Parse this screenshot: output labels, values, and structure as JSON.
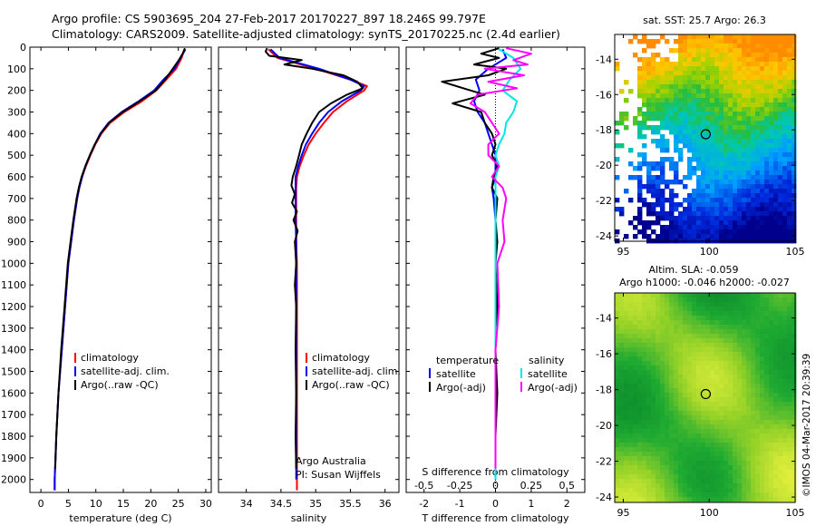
{
  "header": {
    "line1": "Argo profile: CS 5903695_204 27-Feb-2017 20170227_897 18.246S 99.797E",
    "line2": "Climatology: CARS2009. Satellite-adjusted climatology: synTS_20170225.nc (2.4d earlier)"
  },
  "depth_ticks": [
    "0",
    "100",
    "200",
    "300",
    "400",
    "500",
    "600",
    "700",
    "800",
    "900",
    "1000",
    "1100",
    "1200",
    "1300",
    "1400",
    "1500",
    "1600",
    "1700",
    "1800",
    "1900",
    "2000"
  ],
  "colors": {
    "climatology": "#ff0000",
    "satellite": "#0000ff",
    "argo": "#000000",
    "satellite_s": "#00e5e5",
    "argo_s": "#ff00ff"
  },
  "chart_data": [
    {
      "type": "line",
      "xlabel": "temperature (deg C)",
      "xlim": [
        -2,
        31
      ],
      "ylim": [
        0,
        2060
      ],
      "yreversed": true,
      "x_ticks": [
        "0",
        "5",
        "10",
        "15",
        "20",
        "25",
        "30"
      ],
      "legend": [
        "climatology",
        "satellite-adj. clim.",
        "Argo(..raw -QC)"
      ],
      "series": [
        {
          "name": "climatology",
          "color": "#ff0000",
          "depth": [
            10,
            50,
            100,
            150,
            200,
            250,
            300,
            350,
            400,
            450,
            500,
            550,
            600,
            650,
            700,
            800,
            900,
            1000,
            1200,
            1400,
            1600,
            1800,
            2000,
            2050
          ],
          "values": [
            26.1,
            25.6,
            24.6,
            22.8,
            21.0,
            18.4,
            15.2,
            12.6,
            11.0,
            9.9,
            9.0,
            8.2,
            7.5,
            7.0,
            6.6,
            6.0,
            5.5,
            5.0,
            4.4,
            3.8,
            3.2,
            2.8,
            2.5,
            2.5
          ]
        },
        {
          "name": "satellite-adj. clim.",
          "color": "#0000ff",
          "depth": [
            10,
            50,
            100,
            150,
            200,
            250,
            300,
            350,
            400,
            450,
            500,
            550,
            600,
            650,
            700,
            800,
            900,
            1000,
            1200,
            1400,
            1600,
            1800,
            2000,
            2050
          ],
          "values": [
            26.3,
            25.4,
            24.3,
            22.3,
            20.6,
            17.8,
            14.7,
            12.3,
            10.8,
            9.8,
            8.9,
            8.1,
            7.5,
            7.0,
            6.6,
            6.0,
            5.5,
            5.0,
            4.4,
            3.8,
            3.2,
            2.8,
            2.5,
            2.5
          ]
        },
        {
          "name": "Argo(..raw -QC)",
          "color": "#000000",
          "depth": [
            5,
            30,
            60,
            100,
            150,
            200,
            250,
            300,
            350,
            400,
            450,
            500,
            550,
            600,
            650,
            700,
            800,
            900,
            1000,
            1200,
            1400,
            1600,
            1800,
            1950
          ],
          "values": [
            26.2,
            25.8,
            25.1,
            24.0,
            22.6,
            20.9,
            18.0,
            14.9,
            12.4,
            10.9,
            9.8,
            8.9,
            8.1,
            7.4,
            6.9,
            6.5,
            5.9,
            5.4,
            4.9,
            4.3,
            3.7,
            3.2,
            2.8,
            2.6
          ]
        }
      ]
    },
    {
      "type": "line",
      "xlabel": "salinity",
      "xlim": [
        33.6,
        36.2
      ],
      "ylim": [
        0,
        2060
      ],
      "yreversed": true,
      "x_ticks": [
        "34",
        "34.5",
        "35",
        "35.5",
        "36"
      ],
      "legend": [
        "climatology",
        "satellite-adj. clim.",
        "Argo(..raw -QC)"
      ],
      "credit": [
        "Argo Australia",
        "PI: Susan Wijffels"
      ],
      "series": [
        {
          "name": "climatology",
          "color": "#ff0000",
          "depth": [
            10,
            50,
            100,
            150,
            180,
            200,
            250,
            300,
            350,
            400,
            450,
            500,
            550,
            600,
            650,
            700,
            800,
            900,
            1000,
            1200,
            1400,
            1600,
            1800,
            2000,
            2050
          ],
          "values": [
            34.32,
            34.45,
            35.0,
            35.5,
            35.74,
            35.7,
            35.45,
            35.25,
            35.12,
            35.0,
            34.9,
            34.83,
            34.77,
            34.73,
            34.72,
            34.72,
            34.72,
            34.72,
            34.73,
            34.73,
            34.73,
            34.73,
            34.73,
            34.73,
            34.73
          ]
        },
        {
          "name": "satellite-adj. clim.",
          "color": "#0000ff",
          "depth": [
            10,
            50,
            100,
            150,
            180,
            200,
            250,
            300,
            350,
            400,
            450,
            500,
            550,
            600,
            650,
            700,
            800,
            900,
            1000,
            1200,
            1400,
            1600,
            1800,
            2000
          ],
          "values": [
            34.35,
            34.48,
            35.05,
            35.5,
            35.7,
            35.65,
            35.38,
            35.18,
            35.05,
            34.95,
            34.86,
            34.8,
            34.75,
            34.71,
            34.71,
            34.71,
            34.71,
            34.72,
            34.72,
            34.72,
            34.72,
            34.72,
            34.72,
            34.72
          ]
        },
        {
          "name": "Argo(..raw -QC)",
          "color": "#000000",
          "depth": [
            5,
            20,
            40,
            60,
            80,
            100,
            130,
            160,
            190,
            220,
            260,
            300,
            350,
            400,
            450,
            500,
            550,
            600,
            640,
            680,
            720,
            760,
            800,
            850,
            900,
            1000,
            1100,
            1200,
            1400,
            1600,
            1800,
            1950
          ],
          "values": [
            34.3,
            34.28,
            34.33,
            34.8,
            34.55,
            34.95,
            35.4,
            35.6,
            35.68,
            35.45,
            35.22,
            35.05,
            34.95,
            34.87,
            34.8,
            34.76,
            34.72,
            34.67,
            34.65,
            34.7,
            34.66,
            34.73,
            34.68,
            34.74,
            34.7,
            34.72,
            34.7,
            34.72,
            34.71,
            34.72,
            34.71,
            34.72
          ]
        }
      ]
    },
    {
      "type": "line",
      "xlabel": "T difference from climatology",
      "xlabel_top": "S difference from climatology",
      "xlim": [
        -2.5,
        2.5
      ],
      "ylim": [
        0,
        2060
      ],
      "yreversed": true,
      "x_ticks": [
        "-2",
        "-1",
        "0",
        "1",
        "2"
      ],
      "x_ticks_top": [
        "-0.5",
        "-0.25",
        "0",
        "0.25",
        "0.5"
      ],
      "legend_t": {
        "heading": "temperature",
        "items": [
          "satellite",
          "Argo(-adj)"
        ]
      },
      "legend_s": {
        "heading": "salinity",
        "items": [
          "satellite",
          "Argo(-adj)"
        ]
      },
      "series": [
        {
          "name": "temperature satellite",
          "color": "#0000ff",
          "depth": [
            10,
            50,
            100,
            150,
            200,
            250,
            300,
            350,
            400,
            450,
            500,
            550,
            600,
            650,
            700,
            800,
            900,
            1000,
            1200,
            1400,
            1600,
            1800,
            2000
          ],
          "values": [
            0.2,
            0.3,
            -0.2,
            -0.55,
            -0.45,
            -0.6,
            -0.5,
            -0.3,
            -0.2,
            -0.1,
            0,
            0,
            0,
            -0.1,
            -0.05,
            0,
            0,
            0,
            0,
            0,
            0,
            0,
            0
          ]
        },
        {
          "name": "temperature Argo(-adj)",
          "color": "#000000",
          "depth": [
            5,
            30,
            50,
            80,
            100,
            130,
            160,
            190,
            220,
            260,
            300,
            350,
            400,
            450,
            500,
            550,
            600,
            650,
            700,
            800,
            900,
            1000,
            1200,
            1400,
            1600,
            1800,
            1950
          ],
          "values": [
            0.1,
            -0.4,
            0.1,
            -0.6,
            0.3,
            -0.2,
            -1.5,
            -0.9,
            -0.3,
            -1.2,
            -0.4,
            -0.3,
            -0.1,
            0,
            -0.1,
            0.05,
            -0.05,
            -0.1,
            0.05,
            0,
            0.05,
            0,
            0.05,
            0,
            0.05,
            0,
            0
          ]
        },
        {
          "name": "salinity satellite",
          "color": "#00e5e5",
          "depth": [
            10,
            50,
            100,
            150,
            200,
            250,
            300,
            350,
            400,
            450,
            500,
            550,
            600,
            650,
            700,
            800,
            900,
            1000,
            1200,
            1400,
            1600,
            1800,
            2000
          ],
          "values": [
            0.1,
            0.5,
            0.7,
            0.4,
            0.2,
            0.6,
            0.5,
            0.3,
            0.25,
            0.1,
            0,
            0.1,
            0,
            0,
            0,
            0,
            0,
            0,
            0,
            0,
            0,
            0,
            0
          ]
        },
        {
          "name": "salinity Argo(-adj)",
          "color": "#ff00ff",
          "depth": [
            5,
            30,
            60,
            80,
            100,
            130,
            160,
            190,
            220,
            260,
            300,
            350,
            400,
            450,
            500,
            550,
            600,
            650,
            700,
            800,
            900,
            1000,
            1200,
            1400,
            1600,
            1800,
            1950
          ],
          "values": [
            0.3,
            1.0,
            0.5,
            0.9,
            -0.3,
            0.8,
            -0.2,
            0.6,
            -0.5,
            -0.7,
            -0.3,
            -0.1,
            0.1,
            -0.2,
            -0.2,
            0.1,
            -0.1,
            0.2,
            0.3,
            0.2,
            0.25,
            0.05,
            0.1,
            0,
            0,
            0,
            0
          ]
        }
      ]
    }
  ],
  "maps": {
    "sst": {
      "title": "sat. SST: 25.7 Argo: 26.3",
      "y_ticks": [
        "-14",
        "-16",
        "-18",
        "-20",
        "-22",
        "-24"
      ],
      "x_ticks": [
        "95",
        "100",
        "105"
      ],
      "marker": {
        "lon": 99.797,
        "lat": -18.246
      }
    },
    "sla": {
      "title1": "Altim. SLA: -0.059",
      "title2": "Argo h1000: -0.046 h2000: -0.027",
      "y_ticks": [
        "-14",
        "-16",
        "-18",
        "-20",
        "-22",
        "-24"
      ],
      "x_ticks": [
        "95",
        "100",
        "105"
      ],
      "marker": {
        "lon": 99.797,
        "lat": -18.246
      }
    },
    "credit": "©IMOS 04-Mar-2017 20:39:39"
  }
}
